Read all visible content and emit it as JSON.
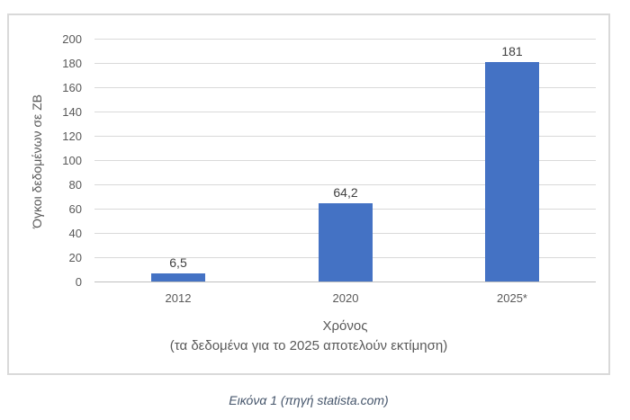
{
  "chart_data": {
    "type": "bar",
    "categories": [
      "2012",
      "2020",
      "2025*"
    ],
    "values": [
      6.5,
      64.2,
      181
    ],
    "value_labels": [
      "6,5",
      "64,2",
      "181"
    ],
    "title": "",
    "xlabel": "Χρόνος",
    "xlabel_note": "(τα δεδομένα για το 2025 αποτελούν εκτίμηση)",
    "ylabel": "Όγκοι δεδομένων σε ZB",
    "ylim": [
      0,
      200
    ],
    "yticks": [
      0,
      20,
      40,
      60,
      80,
      100,
      120,
      140,
      160,
      180,
      200
    ],
    "grid": true,
    "legend": false,
    "colors": {
      "bar": "#4472C4",
      "gridline": "#D9D9D9",
      "axis_line": "#BFBFBF",
      "tick_label": "#595959",
      "axis_title": "#595959",
      "data_label": "#404040",
      "frame_border": "#D9D9D9"
    }
  },
  "caption": {
    "text": "Εικόνα 1 (πηγή statista.com)",
    "color": "#44546A"
  }
}
